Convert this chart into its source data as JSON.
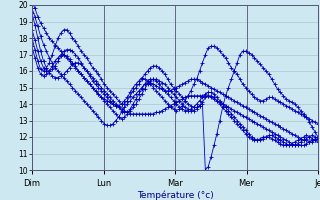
{
  "xlabel": "Température (°c)",
  "background_color": "#cde8f0",
  "grid_color": "#9bbfcc",
  "line_color": "#0000bb",
  "ylim": [
    10,
    20
  ],
  "yticks": [
    10,
    11,
    12,
    13,
    14,
    15,
    16,
    17,
    18,
    19,
    20
  ],
  "day_positions": [
    0,
    0.25,
    0.5,
    0.75,
    1.0
  ],
  "day_labels": [
    "Dim",
    "Lun",
    "Mar",
    "Mer",
    "Je"
  ],
  "series": [
    [
      20.2,
      19.8,
      19.3,
      18.9,
      18.6,
      18.3,
      18.0,
      17.8,
      17.6,
      17.4,
      17.2,
      17.0,
      16.8,
      16.6,
      16.4,
      16.2,
      16.0,
      15.8,
      15.6,
      15.4,
      15.2,
      15.0,
      14.8,
      14.6,
      14.4,
      14.3,
      14.2,
      14.1,
      14.0,
      13.9,
      13.8,
      13.7,
      13.6,
      13.5,
      13.4,
      13.4,
      13.4,
      13.4,
      13.4,
      13.4,
      13.4,
      13.4,
      13.4,
      13.5,
      13.5,
      13.6,
      13.7,
      13.8,
      13.9,
      14.0,
      14.1,
      14.2,
      14.3,
      14.4,
      14.5,
      14.5,
      14.5,
      14.5,
      14.5,
      14.5,
      14.5,
      14.5,
      14.4,
      14.3,
      14.2,
      14.1,
      14.0,
      13.9,
      13.8,
      13.7,
      13.6,
      13.5,
      13.4,
      13.3,
      13.2,
      13.1,
      13.0,
      12.9,
      12.8,
      12.7,
      12.6,
      12.5,
      12.4,
      12.3,
      12.2,
      12.1,
      12.0,
      11.9,
      11.8,
      11.7,
      11.6,
      11.5,
      11.5,
      11.5,
      11.5,
      11.6,
      11.7,
      11.8,
      11.9,
      12.0
    ],
    [
      19.8,
      19.3,
      18.7,
      18.1,
      17.6,
      17.2,
      16.8,
      16.5,
      16.2,
      16.0,
      15.8,
      15.6,
      15.4,
      15.2,
      15.0,
      14.8,
      14.6,
      14.4,
      14.2,
      14.0,
      13.8,
      13.6,
      13.4,
      13.2,
      13.0,
      12.8,
      12.7,
      12.7,
      12.8,
      13.0,
      13.2,
      13.5,
      13.8,
      14.0,
      14.2,
      14.4,
      14.6,
      14.8,
      15.0,
      15.2,
      15.3,
      15.3,
      15.2,
      15.1,
      15.0,
      14.9,
      14.8,
      14.8,
      14.8,
      14.9,
      15.0,
      15.1,
      15.2,
      15.3,
      15.4,
      15.5,
      15.5,
      15.5,
      15.4,
      15.3,
      15.2,
      15.1,
      15.0,
      14.9,
      14.8,
      14.7,
      14.6,
      14.5,
      14.4,
      14.3,
      14.2,
      14.1,
      14.0,
      13.9,
      13.8,
      13.7,
      13.6,
      13.5,
      13.4,
      13.3,
      13.2,
      13.1,
      13.0,
      12.9,
      12.8,
      12.7,
      12.6,
      12.5,
      12.4,
      12.3,
      12.2,
      12.1,
      12.0,
      11.9,
      11.8,
      11.8,
      11.7,
      11.7,
      11.8,
      11.9
    ],
    [
      19.5,
      18.8,
      18.0,
      17.2,
      16.6,
      16.2,
      15.9,
      15.7,
      15.6,
      15.6,
      15.7,
      15.8,
      16.0,
      16.2,
      16.4,
      16.5,
      16.5,
      16.4,
      16.2,
      16.0,
      15.8,
      15.6,
      15.4,
      15.2,
      15.0,
      14.8,
      14.6,
      14.4,
      14.2,
      14.0,
      13.8,
      13.6,
      13.5,
      13.5,
      13.6,
      13.8,
      14.0,
      14.3,
      14.6,
      14.9,
      15.2,
      15.4,
      15.5,
      15.5,
      15.4,
      15.3,
      15.2,
      15.0,
      14.8,
      14.6,
      14.4,
      14.2,
      14.0,
      13.8,
      13.7,
      13.6,
      13.6,
      13.7,
      13.9,
      14.1,
      14.4,
      14.5,
      14.5,
      14.4,
      14.2,
      14.0,
      13.8,
      13.6,
      13.4,
      13.2,
      13.0,
      12.8,
      12.6,
      12.4,
      12.2,
      12.0,
      11.9,
      11.8,
      11.8,
      11.9,
      12.0,
      12.0,
      12.0,
      11.9,
      11.8,
      11.7,
      11.6,
      11.5,
      11.5,
      11.5,
      11.6,
      11.7,
      11.8,
      11.9,
      12.0,
      12.1,
      12.0,
      11.9,
      11.8,
      11.7
    ],
    [
      18.5,
      17.9,
      17.2,
      16.6,
      16.2,
      16.0,
      16.0,
      16.1,
      16.3,
      16.6,
      16.9,
      17.2,
      17.3,
      17.3,
      17.2,
      17.0,
      16.8,
      16.5,
      16.2,
      16.0,
      15.7,
      15.4,
      15.2,
      15.0,
      14.8,
      14.6,
      14.4,
      14.2,
      14.0,
      13.9,
      13.9,
      14.0,
      14.2,
      14.4,
      14.7,
      15.0,
      15.2,
      15.4,
      15.6,
      15.5,
      15.4,
      15.2,
      15.0,
      14.8,
      14.6,
      14.4,
      14.2,
      14.0,
      13.8,
      13.7,
      13.6,
      13.7,
      13.9,
      14.2,
      14.5,
      14.8,
      15.2,
      15.5,
      16.0,
      16.5,
      17.0,
      17.4,
      17.5,
      17.5,
      17.4,
      17.2,
      17.0,
      16.8,
      16.5,
      16.2,
      16.0,
      15.8,
      15.5,
      15.2,
      15.0,
      14.8,
      14.6,
      14.4,
      14.3,
      14.2,
      14.2,
      14.3,
      14.4,
      14.4,
      14.3,
      14.2,
      14.1,
      14.0,
      13.9,
      13.8,
      13.7,
      13.6,
      13.5,
      13.4,
      13.3,
      13.2,
      13.1,
      13.0,
      12.9,
      12.8
    ],
    [
      18.0,
      17.3,
      16.6,
      16.1,
      16.0,
      16.2,
      16.5,
      17.0,
      17.5,
      18.0,
      18.3,
      18.5,
      18.5,
      18.3,
      18.0,
      17.8,
      17.5,
      17.2,
      17.0,
      16.8,
      16.5,
      16.2,
      16.0,
      15.8,
      15.5,
      15.2,
      15.0,
      14.8,
      14.6,
      14.4,
      14.2,
      14.0,
      14.0,
      14.2,
      14.5,
      14.8,
      15.0,
      15.2,
      15.5,
      15.8,
      16.0,
      16.2,
      16.3,
      16.3,
      16.2,
      16.0,
      15.8,
      15.5,
      15.2,
      15.0,
      14.8,
      14.6,
      14.4,
      14.2,
      14.0,
      13.9,
      13.8,
      13.8,
      13.9,
      14.0,
      10.0,
      10.2,
      10.8,
      11.5,
      12.2,
      13.0,
      13.8,
      14.5,
      15.0,
      15.5,
      16.0,
      16.5,
      17.0,
      17.2,
      17.2,
      17.1,
      17.0,
      16.8,
      16.6,
      16.4,
      16.2,
      16.0,
      15.8,
      15.5,
      15.2,
      14.9,
      14.7,
      14.5,
      14.3,
      14.2,
      14.1,
      14.0,
      13.8,
      13.6,
      13.4,
      13.2,
      12.9,
      12.6,
      12.3,
      12.0
    ],
    [
      17.5,
      16.8,
      16.2,
      15.8,
      15.7,
      15.8,
      16.0,
      16.3,
      16.6,
      16.8,
      17.0,
      17.0,
      16.9,
      16.7,
      16.5,
      16.3,
      16.0,
      15.8,
      15.6,
      15.4,
      15.2,
      15.0,
      14.8,
      14.6,
      14.4,
      14.2,
      14.0,
      13.8,
      13.6,
      13.4,
      13.2,
      13.1,
      13.2,
      13.4,
      13.7,
      14.0,
      14.3,
      14.6,
      14.9,
      15.2,
      15.4,
      15.5,
      15.5,
      15.4,
      15.2,
      15.0,
      14.8,
      14.6,
      14.4,
      14.2,
      14.0,
      13.8,
      13.7,
      13.6,
      13.6,
      13.7,
      13.8,
      14.0,
      14.2,
      14.4,
      14.6,
      14.7,
      14.7,
      14.6,
      14.4,
      14.2,
      14.0,
      13.8,
      13.6,
      13.4,
      13.2,
      13.0,
      12.8,
      12.6,
      12.4,
      12.2,
      12.0,
      11.9,
      11.8,
      11.8,
      11.9,
      12.0,
      12.1,
      12.1,
      12.0,
      11.9,
      11.8,
      11.7,
      11.6,
      11.5,
      11.5,
      11.5,
      11.6,
      11.7,
      11.8,
      11.9,
      12.0,
      12.1,
      12.0,
      11.9
    ]
  ]
}
